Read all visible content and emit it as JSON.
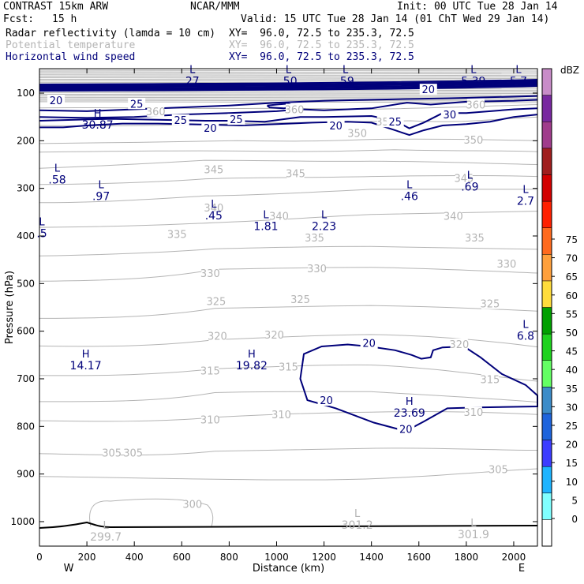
{
  "header": {
    "model": "CONTRAST 15km ARW",
    "center": "NCAR/MMM",
    "init": "Init: 00 UTC Tue 28 Jan 14",
    "fcst_label": "Fcst:",
    "fcst_value": "15 h",
    "valid": "Valid: 15 UTC Tue 28 Jan 14 (01 ChT Wed 29 Jan 14)",
    "fields": [
      {
        "name": "Radar reflectivity (lamda = 10 cm)",
        "xy": "XY=  96.0, 72.5 to 235.3, 72.5"
      },
      {
        "name": "Potential temperature",
        "xy": "XY=  96.0, 72.5 to 235.3, 72.5"
      },
      {
        "name": "Horizontal wind speed",
        "xy": "XY=  96.0, 72.5 to 235.3, 72.5"
      }
    ]
  },
  "chart_data": {
    "type": "vertical cross-section contour",
    "xlabel": "Distance (km)",
    "ylabel": "Pressure (hPa)",
    "xlim": [
      0,
      2100
    ],
    "ylim": [
      1043,
      38
    ],
    "x_ticks": [
      0,
      200,
      400,
      600,
      800,
      1000,
      1200,
      1400,
      1600,
      1800,
      2000
    ],
    "y_ticks": [
      100,
      200,
      300,
      400,
      500,
      600,
      700,
      800,
      900,
      1000
    ],
    "end_labels": {
      "left": "W",
      "right": "E"
    },
    "colorbar": {
      "unit": "dBZ",
      "levels": [
        0,
        5,
        10,
        15,
        20,
        25,
        30,
        35,
        40,
        45,
        50,
        55,
        60,
        65,
        70,
        75
      ],
      "colors": [
        "#ffffff",
        "#80ffff",
        "#1eb4ff",
        "#3c3cff",
        "#1e64dc",
        "#3c8cc8",
        "#64ff64",
        "#1ed21e",
        "#00a000",
        "#ffdc3c",
        "#ffa03c",
        "#ff6a1e",
        "#ff2000",
        "#d20000",
        "#a01e1e",
        "#a03c8c",
        "#7828a0",
        "#c88cc8"
      ]
    },
    "series": [
      {
        "name": "Potential temperature",
        "color": "#b4b4b4",
        "labels": [
          {
            "text": "360",
            "x": 490,
            "p": 138
          },
          {
            "text": "360",
            "x": 1075,
            "p": 134
          },
          {
            "text": "360",
            "x": 1840,
            "p": 124
          },
          {
            "text": "350",
            "x": 1460,
            "p": 160
          },
          {
            "text": "350",
            "x": 1340,
            "p": 184
          },
          {
            "text": "350",
            "x": 1830,
            "p": 198
          },
          {
            "text": "345",
            "x": 735,
            "p": 260
          },
          {
            "text": "345",
            "x": 1080,
            "p": 268
          },
          {
            "text": "345",
            "x": 1790,
            "p": 278
          },
          {
            "text": "340",
            "x": 735,
            "p": 340
          },
          {
            "text": "340",
            "x": 1010,
            "p": 358
          },
          {
            "text": "340",
            "x": 1745,
            "p": 358
          },
          {
            "text": "335",
            "x": 580,
            "p": 396
          },
          {
            "text": "335",
            "x": 1160,
            "p": 403
          },
          {
            "text": "335",
            "x": 1835,
            "p": 403
          },
          {
            "text": "330",
            "x": 720,
            "p": 478
          },
          {
            "text": "330",
            "x": 1170,
            "p": 468
          },
          {
            "text": "330",
            "x": 1970,
            "p": 458
          },
          {
            "text": "325",
            "x": 745,
            "p": 537
          },
          {
            "text": "325",
            "x": 1100,
            "p": 533
          },
          {
            "text": "325",
            "x": 1900,
            "p": 542
          },
          {
            "text": "320",
            "x": 750,
            "p": 610
          },
          {
            "text": "320",
            "x": 990,
            "p": 607
          },
          {
            "text": "320",
            "x": 1770,
            "p": 627
          },
          {
            "text": "315",
            "x": 720,
            "p": 683
          },
          {
            "text": "315",
            "x": 1050,
            "p": 674
          },
          {
            "text": "315",
            "x": 1900,
            "p": 701
          },
          {
            "text": "310",
            "x": 720,
            "p": 785
          },
          {
            "text": "310",
            "x": 1020,
            "p": 775
          },
          {
            "text": "310",
            "x": 1830,
            "p": 770
          },
          {
            "text": "305",
            "x": 305,
            "p": 855
          },
          {
            "text": "305",
            "x": 395,
            "p": 855
          },
          {
            "text": "305",
            "x": 1935,
            "p": 890
          },
          {
            "text": "300",
            "x": 645,
            "p": 963
          }
        ],
        "extrema": [
          {
            "type": "L",
            "value": "301.2",
            "x": 1340,
            "p": 990
          },
          {
            "type": "L",
            "value": "299.7",
            "x": 280,
            "p": 1015
          },
          {
            "type": "L",
            "value": "301.9",
            "x": 1830,
            "p": 1010
          }
        ]
      },
      {
        "name": "Horizontal wind speed",
        "color": "#00007a",
        "units": "m/s",
        "labels": [
          {
            "text": "20",
            "x": 70,
            "p": 115
          },
          {
            "text": "25",
            "x": 410,
            "p": 122
          },
          {
            "text": "25",
            "x": 595,
            "p": 156
          },
          {
            "text": "20",
            "x": 720,
            "p": 173
          },
          {
            "text": "25",
            "x": 830,
            "p": 155
          },
          {
            "text": "20",
            "x": 1250,
            "p": 168
          },
          {
            "text": "25",
            "x": 1500,
            "p": 160
          },
          {
            "text": "30",
            "x": 1730,
            "p": 145
          },
          {
            "text": "20",
            "x": 1640,
            "p": 92
          },
          {
            "text": "20",
            "x": 1390,
            "p": 625
          },
          {
            "text": "20",
            "x": 1210,
            "p": 745
          },
          {
            "text": "20",
            "x": 1545,
            "p": 805
          }
        ],
        "extrema": [
          {
            "type": "L",
            "value": "27",
            "x": 645,
            "p": 58
          },
          {
            "type": "L",
            "value": ".50",
            "x": 1050,
            "p": 58
          },
          {
            "type": "L",
            "value": ".59",
            "x": 1290,
            "p": 58
          },
          {
            "type": "L",
            "value": "5.39",
            "x": 1830,
            "p": 58
          },
          {
            "type": "L",
            "value": "5.7",
            "x": 2020,
            "p": 58
          },
          {
            "type": "H",
            "value": "30.87",
            "x": 245,
            "p": 150
          },
          {
            "type": "L",
            "value": ".58",
            "x": 75,
            "p": 265
          },
          {
            "type": "L",
            "value": ".97",
            "x": 260,
            "p": 300
          },
          {
            "type": "L",
            "value": ".45",
            "x": 735,
            "p": 340
          },
          {
            "type": "L",
            "value": "1.81",
            "x": 955,
            "p": 363
          },
          {
            "type": "L",
            "value": "2.23",
            "x": 1200,
            "p": 363
          },
          {
            "type": "L",
            "value": ".46",
            "x": 1560,
            "p": 300
          },
          {
            "type": "L",
            "value": ".69",
            "x": 1815,
            "p": 280
          },
          {
            "type": "L",
            "value": "2.7",
            "x": 2050,
            "p": 310
          },
          {
            "type": "L",
            "value": ".5",
            "x": 10,
            "p": 378
          },
          {
            "type": "L",
            "value": "6.8",
            "x": 2050,
            "p": 593
          },
          {
            "type": "H",
            "value": "14.17",
            "x": 195,
            "p": 655
          },
          {
            "type": "H",
            "value": "19.82",
            "x": 895,
            "p": 655
          },
          {
            "type": "H",
            "value": "23.69",
            "x": 1560,
            "p": 755
          }
        ]
      }
    ]
  }
}
